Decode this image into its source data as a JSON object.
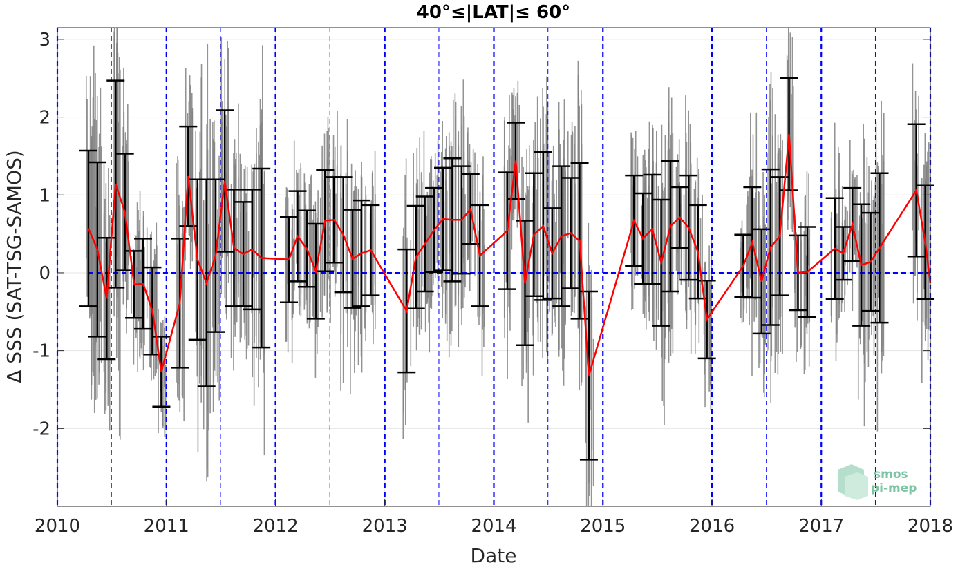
{
  "chart_data": {
    "type": "scatter",
    "title": "40°≤|LAT|≤ 60°",
    "xlabel": "Date",
    "ylabel": "Δ SSS (SAT-TSG-SAMOS)",
    "xlim": [
      "2010-01-01",
      "2018-01-01"
    ],
    "ylim": [
      -3,
      3.15
    ],
    "x_ticks": [
      "2010",
      "2011",
      "2012",
      "2013",
      "2014",
      "2015",
      "2016",
      "2017",
      "2018"
    ],
    "y_ticks": [
      "3",
      "2",
      "1",
      "0",
      "-1",
      "-2"
    ],
    "grid": true,
    "colors": {
      "scatter": "#808080",
      "monthly_mean_line": "#ff0000",
      "error_bars": "#000000",
      "zero_line": "#0000ff",
      "year_lines": "#0000ff",
      "logo": "#7cc4a4"
    },
    "monthly_mean": [
      {
        "x": "2010-04-15",
        "y": 0.57,
        "std": 1.0
      },
      {
        "x": "2010-05-15",
        "y": 0.3,
        "std": 1.12
      },
      {
        "x": "2010-06-15",
        "y": -0.33,
        "std": 0.78
      },
      {
        "x": "2010-07-15",
        "y": 1.14,
        "std": 1.33
      },
      {
        "x": "2010-08-15",
        "y": 0.78,
        "std": 0.75
      },
      {
        "x": "2010-09-15",
        "y": -0.15,
        "std": 0.43
      },
      {
        "x": "2010-10-15",
        "y": -0.14,
        "std": 0.58
      },
      {
        "x": "2010-11-15",
        "y": -0.49,
        "std": 0.56
      },
      {
        "x": "2010-12-15",
        "y": -1.27,
        "std": 0.45
      },
      {
        "x": "2011-02-15",
        "y": -0.39,
        "std": 0.83
      },
      {
        "x": "2011-03-15",
        "y": 1.24,
        "std": 0.64
      },
      {
        "x": "2011-04-15",
        "y": 0.17,
        "std": 1.03
      },
      {
        "x": "2011-05-15",
        "y": -0.13,
        "std": 1.33
      },
      {
        "x": "2011-06-15",
        "y": 0.22,
        "std": 0.98
      },
      {
        "x": "2011-07-15",
        "y": 1.18,
        "std": 0.91
      },
      {
        "x": "2011-08-15",
        "y": 0.32,
        "std": 0.75
      },
      {
        "x": "2011-09-15",
        "y": 0.24,
        "std": 0.67
      },
      {
        "x": "2011-10-15",
        "y": 0.3,
        "std": 0.77
      },
      {
        "x": "2011-11-15",
        "y": 0.19,
        "std": 1.15
      },
      {
        "x": "2012-02-15",
        "y": 0.17,
        "std": 0.55
      },
      {
        "x": "2012-03-15",
        "y": 0.47,
        "std": 0.58
      },
      {
        "x": "2012-04-15",
        "y": 0.31,
        "std": 0.49
      },
      {
        "x": "2012-05-15",
        "y": 0.02,
        "std": 0.61
      },
      {
        "x": "2012-06-15",
        "y": 0.67,
        "std": 0.65
      },
      {
        "x": "2012-07-15",
        "y": 0.68,
        "std": 0.55
      },
      {
        "x": "2012-08-15",
        "y": 0.49,
        "std": 0.74
      },
      {
        "x": "2012-09-15",
        "y": 0.18,
        "std": 0.63
      },
      {
        "x": "2012-10-15",
        "y": 0.25,
        "std": 0.68
      },
      {
        "x": "2012-11-15",
        "y": 0.29,
        "std": 0.58
      },
      {
        "x": "2013-03-15",
        "y": -0.49,
        "std": 0.79
      },
      {
        "x": "2013-04-15",
        "y": 0.2,
        "std": 0.66
      },
      {
        "x": "2013-05-15",
        "y": 0.37,
        "std": 0.61
      },
      {
        "x": "2013-06-15",
        "y": 0.55,
        "std": 0.54
      },
      {
        "x": "2013-07-15",
        "y": 0.69,
        "std": 0.66
      },
      {
        "x": "2013-08-15",
        "y": 0.68,
        "std": 0.79
      },
      {
        "x": "2013-09-15",
        "y": 0.68,
        "std": 0.69
      },
      {
        "x": "2013-10-15",
        "y": 0.82,
        "std": 0.45
      },
      {
        "x": "2013-11-15",
        "y": 0.22,
        "std": 0.65
      },
      {
        "x": "2014-02-15",
        "y": 0.54,
        "std": 0.75
      },
      {
        "x": "2014-03-15",
        "y": 1.44,
        "std": 0.49
      },
      {
        "x": "2014-04-15",
        "y": -0.13,
        "std": 0.8
      },
      {
        "x": "2014-05-15",
        "y": 0.49,
        "std": 0.79
      },
      {
        "x": "2014-06-15",
        "y": 0.6,
        "std": 0.95
      },
      {
        "x": "2014-07-15",
        "y": 0.25,
        "std": 0.58
      },
      {
        "x": "2014-08-15",
        "y": 0.47,
        "std": 0.9
      },
      {
        "x": "2014-09-15",
        "y": 0.51,
        "std": 0.71
      },
      {
        "x": "2014-10-15",
        "y": 0.41,
        "std": 1.0
      },
      {
        "x": "2014-11-15",
        "y": -1.32,
        "std": 1.08
      },
      {
        "x": "2015-04-15",
        "y": 0.67,
        "std": 0.58
      },
      {
        "x": "2015-05-15",
        "y": 0.44,
        "std": 0.58
      },
      {
        "x": "2015-06-15",
        "y": 0.56,
        "std": 0.7
      },
      {
        "x": "2015-07-15",
        "y": 0.13,
        "std": 0.81
      },
      {
        "x": "2015-08-15",
        "y": 0.6,
        "std": 0.84
      },
      {
        "x": "2015-09-15",
        "y": 0.71,
        "std": 0.39
      },
      {
        "x": "2015-10-15",
        "y": 0.58,
        "std": 0.67
      },
      {
        "x": "2015-11-15",
        "y": 0.27,
        "std": 0.6
      },
      {
        "x": "2015-12-15",
        "y": -0.6,
        "std": 0.5
      },
      {
        "x": "2016-04-15",
        "y": 0.09,
        "std": 0.4
      },
      {
        "x": "2016-05-15",
        "y": 0.39,
        "std": 0.71
      },
      {
        "x": "2016-06-15",
        "y": -0.11,
        "std": 0.67
      },
      {
        "x": "2016-07-15",
        "y": 0.33,
        "std": 1.0
      },
      {
        "x": "2016-08-15",
        "y": 0.47,
        "std": 0.76
      },
      {
        "x": "2016-09-15",
        "y": 1.78,
        "std": 0.72
      },
      {
        "x": "2016-10-15",
        "y": 0.0,
        "std": 0.48
      },
      {
        "x": "2016-11-15",
        "y": 0.01,
        "std": 0.58
      },
      {
        "x": "2017-02-15",
        "y": 0.31,
        "std": 0.65
      },
      {
        "x": "2017-03-15",
        "y": 0.25,
        "std": 0.34
      },
      {
        "x": "2017-04-15",
        "y": 0.62,
        "std": 0.47
      },
      {
        "x": "2017-05-15",
        "y": 0.1,
        "std": 0.78
      },
      {
        "x": "2017-06-15",
        "y": 0.14,
        "std": 0.63
      },
      {
        "x": "2017-07-15",
        "y": 0.32,
        "std": 0.96
      },
      {
        "x": "2017-11-15",
        "y": 1.06,
        "std": 0.85
      },
      {
        "x": "2017-12-15",
        "y": 0.39,
        "std": 0.73
      },
      {
        "x": "2018-01-01",
        "y": -0.13,
        "std": 0
      }
    ]
  },
  "logo": {
    "line1": "smos",
    "line2": "pi-mep"
  }
}
